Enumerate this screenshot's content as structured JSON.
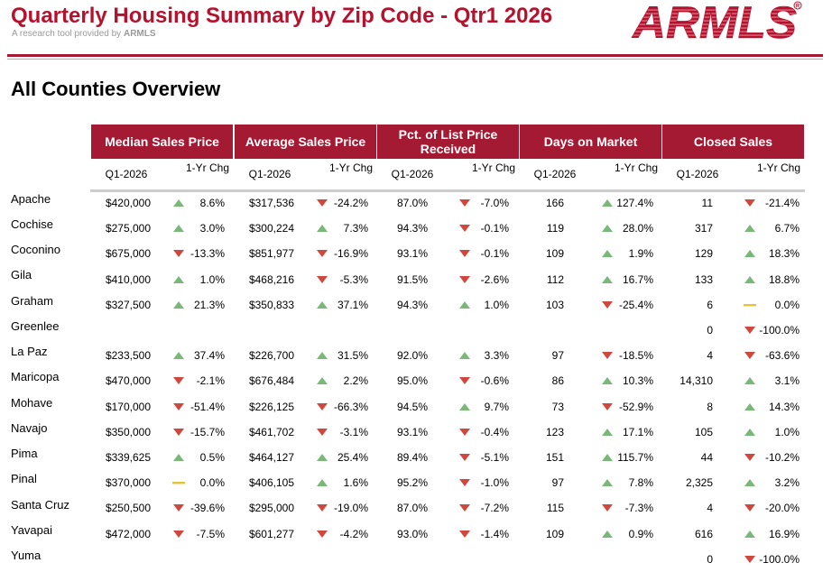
{
  "header": {
    "title": "Quarterly Housing Summary by Zip Code - Qtr1 2026",
    "subtitle_prefix": "A research tool provided by ",
    "subtitle_brand": "ARMLS",
    "logo_text": "ARMLS"
  },
  "section_title": "All Counties Overview",
  "groups": [
    "Median Sales Price",
    "Average Sales Price",
    "Pct. of List Price Received",
    "Days on Market",
    "Closed Sales"
  ],
  "subheaders": {
    "period": "Q1-2026",
    "change": "1-Yr Chg"
  },
  "colors": {
    "brand": "#a51a33",
    "up": "#7ab87a",
    "down": "#d0483d",
    "flat": "#e6c13a"
  },
  "rows": [
    {
      "county": "Apache",
      "cells": [
        [
          "$420,000",
          "up",
          "8.6%"
        ],
        [
          "$317,536",
          "down",
          "-24.2%"
        ],
        [
          "87.0%",
          "down",
          "-7.0%"
        ],
        [
          "166",
          "up",
          "127.4%"
        ],
        [
          "11",
          "down",
          "-21.4%"
        ]
      ]
    },
    {
      "county": "Cochise",
      "cells": [
        [
          "$275,000",
          "up",
          "3.0%"
        ],
        [
          "$300,224",
          "up",
          "7.3%"
        ],
        [
          "94.3%",
          "down",
          "-0.1%"
        ],
        [
          "119",
          "up",
          "28.0%"
        ],
        [
          "317",
          "up",
          "6.7%"
        ]
      ]
    },
    {
      "county": "Coconino",
      "cells": [
        [
          "$675,000",
          "down",
          "-13.3%"
        ],
        [
          "$851,977",
          "down",
          "-16.9%"
        ],
        [
          "93.1%",
          "down",
          "-0.1%"
        ],
        [
          "109",
          "up",
          "1.9%"
        ],
        [
          "129",
          "up",
          "18.3%"
        ]
      ]
    },
    {
      "county": "Gila",
      "cells": [
        [
          "$410,000",
          "up",
          "1.0%"
        ],
        [
          "$468,216",
          "down",
          "-5.3%"
        ],
        [
          "91.5%",
          "down",
          "-2.6%"
        ],
        [
          "112",
          "up",
          "16.7%"
        ],
        [
          "133",
          "up",
          "18.8%"
        ]
      ]
    },
    {
      "county": "Graham",
      "cells": [
        [
          "$327,500",
          "up",
          "21.3%"
        ],
        [
          "$350,833",
          "up",
          "37.1%"
        ],
        [
          "94.3%",
          "up",
          "1.0%"
        ],
        [
          "103",
          "down",
          "-25.4%"
        ],
        [
          "6",
          "flat",
          "0.0%"
        ]
      ]
    },
    {
      "county": "Greenlee",
      "cells": [
        [
          "",
          "",
          ""
        ],
        [
          "",
          "",
          ""
        ],
        [
          "",
          "",
          ""
        ],
        [
          "",
          "",
          ""
        ],
        [
          "0",
          "down",
          "-100.0%"
        ]
      ]
    },
    {
      "county": "La Paz",
      "cells": [
        [
          "$233,500",
          "up",
          "37.4%"
        ],
        [
          "$226,700",
          "up",
          "31.5%"
        ],
        [
          "92.0%",
          "up",
          "3.3%"
        ],
        [
          "97",
          "down",
          "-18.5%"
        ],
        [
          "4",
          "down",
          "-63.6%"
        ]
      ]
    },
    {
      "county": "Maricopa",
      "cells": [
        [
          "$470,000",
          "down",
          "-2.1%"
        ],
        [
          "$676,484",
          "up",
          "2.2%"
        ],
        [
          "95.0%",
          "down",
          "-0.6%"
        ],
        [
          "86",
          "up",
          "10.3%"
        ],
        [
          "14,310",
          "up",
          "3.1%"
        ]
      ]
    },
    {
      "county": "Mohave",
      "cells": [
        [
          "$170,000",
          "down",
          "-51.4%"
        ],
        [
          "$226,125",
          "down",
          "-66.3%"
        ],
        [
          "94.5%",
          "up",
          "9.7%"
        ],
        [
          "73",
          "down",
          "-52.9%"
        ],
        [
          "8",
          "up",
          "14.3%"
        ]
      ]
    },
    {
      "county": "Navajo",
      "cells": [
        [
          "$350,000",
          "down",
          "-15.7%"
        ],
        [
          "$461,702",
          "down",
          "-3.1%"
        ],
        [
          "93.1%",
          "down",
          "-0.4%"
        ],
        [
          "123",
          "up",
          "17.1%"
        ],
        [
          "105",
          "up",
          "1.0%"
        ]
      ]
    },
    {
      "county": "Pima",
      "cells": [
        [
          "$339,625",
          "up",
          "0.5%"
        ],
        [
          "$464,127",
          "up",
          "25.4%"
        ],
        [
          "89.4%",
          "down",
          "-5.1%"
        ],
        [
          "151",
          "up",
          "115.7%"
        ],
        [
          "44",
          "down",
          "-10.2%"
        ]
      ]
    },
    {
      "county": "Pinal",
      "cells": [
        [
          "$370,000",
          "flat",
          "0.0%"
        ],
        [
          "$406,105",
          "up",
          "1.6%"
        ],
        [
          "95.2%",
          "down",
          "-1.0%"
        ],
        [
          "97",
          "up",
          "7.8%"
        ],
        [
          "2,325",
          "up",
          "3.2%"
        ]
      ]
    },
    {
      "county": "Santa Cruz",
      "cells": [
        [
          "$250,500",
          "down",
          "-39.6%"
        ],
        [
          "$295,000",
          "down",
          "-19.0%"
        ],
        [
          "87.0%",
          "down",
          "-7.2%"
        ],
        [
          "115",
          "down",
          "-7.3%"
        ],
        [
          "4",
          "down",
          "-20.0%"
        ]
      ]
    },
    {
      "county": "Yavapai",
      "cells": [
        [
          "$472,000",
          "down",
          "-7.5%"
        ],
        [
          "$601,277",
          "down",
          "-4.2%"
        ],
        [
          "93.0%",
          "down",
          "-1.4%"
        ],
        [
          "109",
          "up",
          "0.9%"
        ],
        [
          "616",
          "up",
          "16.9%"
        ]
      ]
    },
    {
      "county": "Yuma",
      "cells": [
        [
          "",
          "",
          ""
        ],
        [
          "",
          "",
          ""
        ],
        [
          "",
          "",
          ""
        ],
        [
          "",
          "",
          ""
        ],
        [
          "0",
          "down",
          "-100.0%"
        ]
      ]
    }
  ]
}
